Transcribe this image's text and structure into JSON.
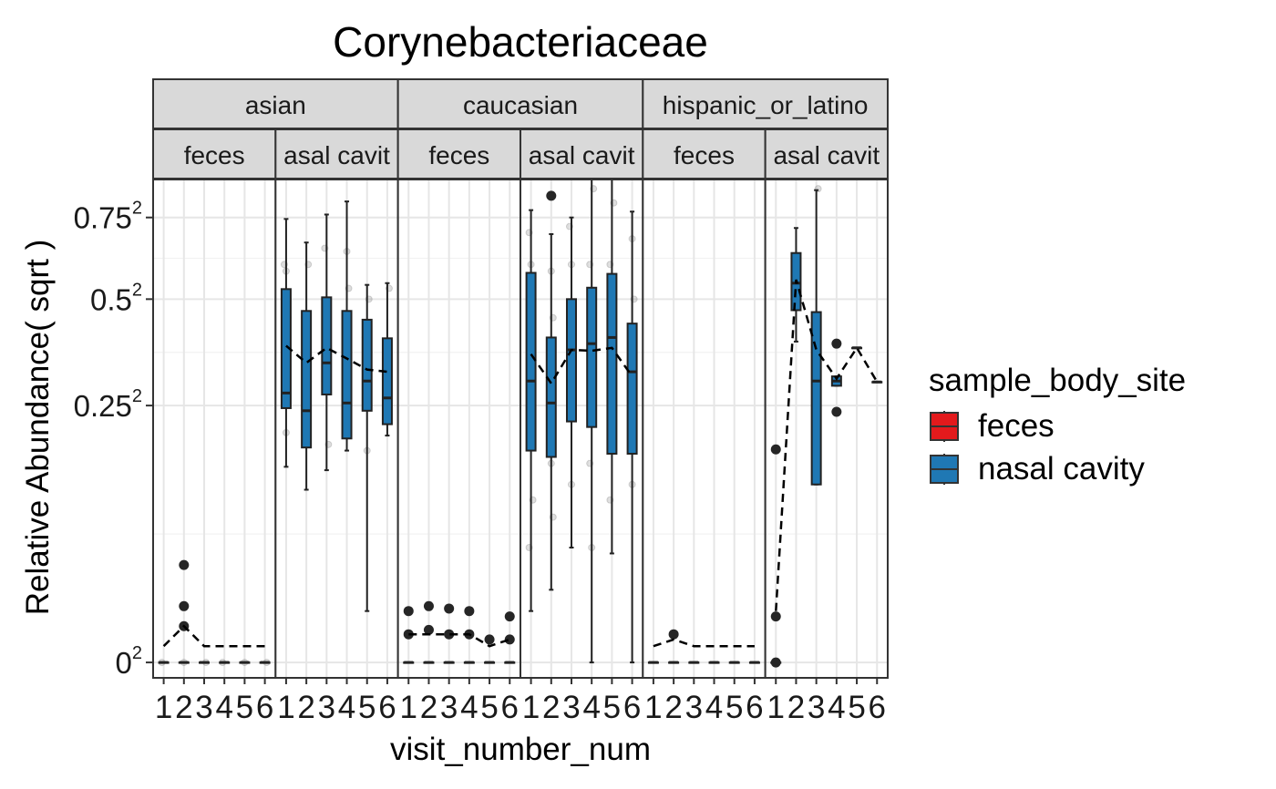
{
  "chart_data": {
    "type": "box",
    "title": "Corynebacteriaceae",
    "xlabel": "visit_number_num",
    "ylabel": "Relative Abundance( sqrt )",
    "y_scale": "sqrt",
    "yticks": [
      0,
      0.25,
      0.5,
      0.75
    ],
    "y_tick_labels": [
      "0",
      "0.25",
      "0.5",
      "0.75"
    ],
    "y_tick_suffix": "2",
    "ylim_sqrt": [
      -0.03,
      0.94
    ],
    "x_tick_labels": [
      "1",
      "2",
      "3",
      "4",
      "5",
      "6"
    ],
    "grid": true,
    "legend_position": "right",
    "legend_title": "sample_body_site",
    "legend": [
      {
        "label": "feces",
        "color": "#e31a1c"
      },
      {
        "label": "nasal cavity",
        "color": "#1f78b4"
      }
    ],
    "facets_top": [
      "asian",
      "caucasian",
      "hispanic_or_latino"
    ],
    "facets_sub_labels": [
      "feces",
      "asal cavit"
    ],
    "panels": [
      {
        "ethnicity": "asian",
        "site": "feces",
        "label": "feces",
        "boxes": [
          {
            "visit": 1,
            "q1": 0,
            "median": 0,
            "q3": 0,
            "wlo": 0,
            "whi": 0
          },
          {
            "visit": 2,
            "q1": 0,
            "median": 0,
            "q3": 0,
            "wlo": 0,
            "whi": 0
          },
          {
            "visit": 3,
            "q1": 0,
            "median": 0,
            "q3": 0,
            "wlo": 0,
            "whi": 0
          },
          {
            "visit": 4,
            "q1": 0,
            "median": 0,
            "q3": 0,
            "wlo": 0,
            "whi": 0
          },
          {
            "visit": 5,
            "q1": 0,
            "median": 0,
            "q3": 0,
            "wlo": 0,
            "whi": 0
          },
          {
            "visit": 6,
            "q1": 0,
            "median": 0,
            "q3": 0,
            "wlo": 0,
            "whi": 0
          }
        ],
        "outliers": [
          [
            2,
            0.036
          ],
          [
            2,
            0.005
          ],
          [
            2,
            0.012
          ]
        ],
        "mean_line": [
          [
            1,
            0.001
          ],
          [
            2,
            0.005
          ],
          [
            3,
            0.001
          ],
          [
            4,
            0.001
          ],
          [
            5,
            0.001
          ],
          [
            6,
            0.001
          ]
        ],
        "jitter": [
          [
            1,
            0.0
          ],
          [
            2,
            0.0
          ],
          [
            3,
            0.0
          ],
          [
            4,
            0.0
          ],
          [
            5,
            0.0
          ],
          [
            6,
            0.0
          ]
        ]
      },
      {
        "ethnicity": "asian",
        "site": "nasal cavity",
        "label": "asal cavit",
        "boxes": [
          {
            "visit": 1,
            "q1": 0.245,
            "median": 0.275,
            "q3": 0.528,
            "wlo": 0.145,
            "whi": 0.745
          },
          {
            "visit": 2,
            "q1": 0.175,
            "median": 0.24,
            "q3": 0.468,
            "wlo": 0.113,
            "whi": 0.668
          },
          {
            "visit": 3,
            "q1": 0.272,
            "median": 0.34,
            "q3": 0.505,
            "wlo": 0.14,
            "whi": 0.76
          },
          {
            "visit": 4,
            "q1": 0.19,
            "median": 0.255,
            "q3": 0.468,
            "wlo": 0.17,
            "whi": 0.805
          },
          {
            "visit": 5,
            "q1": 0.24,
            "median": 0.3,
            "q3": 0.445,
            "wlo": 0.01,
            "whi": 0.54
          },
          {
            "visit": 6,
            "q1": 0.215,
            "median": 0.265,
            "q3": 0.398,
            "wlo": 0.195,
            "whi": 0.545
          }
        ],
        "outliers": [],
        "mean_line": [
          [
            1,
            0.38
          ],
          [
            2,
            0.34
          ],
          [
            3,
            0.375
          ],
          [
            4,
            0.35
          ],
          [
            5,
            0.325
          ],
          [
            6,
            0.32
          ]
        ],
        "jitter": [
          [
            1,
            0.6
          ],
          [
            1,
            0.58
          ],
          [
            1,
            0.45
          ],
          [
            1,
            0.3
          ],
          [
            1,
            0.2
          ],
          [
            2,
            0.6
          ],
          [
            2,
            0.45
          ],
          [
            2,
            0.22
          ],
          [
            2,
            0.3
          ],
          [
            3,
            0.65
          ],
          [
            3,
            0.45
          ],
          [
            3,
            0.18
          ],
          [
            3,
            0.3
          ],
          [
            4,
            0.64
          ],
          [
            4,
            0.53
          ],
          [
            4,
            0.3
          ],
          [
            4,
            0.22
          ],
          [
            5,
            0.5
          ],
          [
            5,
            0.4
          ],
          [
            5,
            0.17
          ],
          [
            6,
            0.53
          ],
          [
            6,
            0.35
          ],
          [
            6,
            0.25
          ]
        ]
      },
      {
        "ethnicity": "caucasian",
        "site": "feces",
        "label": "feces",
        "boxes": [
          {
            "visit": 1,
            "q1": 0,
            "median": 0,
            "q3": 0,
            "wlo": 0,
            "whi": 0
          },
          {
            "visit": 2,
            "q1": 0,
            "median": 0,
            "q3": 0,
            "wlo": 0,
            "whi": 0
          },
          {
            "visit": 3,
            "q1": 0,
            "median": 0,
            "q3": 0,
            "wlo": 0,
            "whi": 0
          },
          {
            "visit": 4,
            "q1": 0,
            "median": 0,
            "q3": 0,
            "wlo": 0,
            "whi": 0
          },
          {
            "visit": 5,
            "q1": 0,
            "median": 0,
            "q3": 0,
            "wlo": 0,
            "whi": 0
          },
          {
            "visit": 6,
            "q1": 0,
            "median": 0,
            "q3": 0,
            "wlo": 0,
            "whi": 0
          }
        ],
        "outliers": [
          [
            1,
            0.01
          ],
          [
            1,
            0.003
          ],
          [
            2,
            0.012
          ],
          [
            2,
            0.004
          ],
          [
            3,
            0.011
          ],
          [
            3,
            0.003
          ],
          [
            4,
            0.01
          ],
          [
            4,
            0.003
          ],
          [
            5,
            0.002
          ],
          [
            6,
            0.008
          ],
          [
            6,
            0.002
          ]
        ],
        "mean_line": [
          [
            1,
            0.003
          ],
          [
            2,
            0.003
          ],
          [
            3,
            0.003
          ],
          [
            4,
            0.003
          ],
          [
            5,
            0.001
          ],
          [
            6,
            0.002
          ]
        ],
        "jitter": []
      },
      {
        "ethnicity": "caucasian",
        "site": "nasal cavity",
        "label": "asal cavit",
        "boxes": [
          {
            "visit": 1,
            "q1": 0.17,
            "median": 0.3,
            "q3": 0.575,
            "wlo": 0.01,
            "whi": 0.775
          },
          {
            "visit": 2,
            "q1": 0.16,
            "median": 0.255,
            "q3": 0.4,
            "wlo": 0.02,
            "whi": 0.695
          },
          {
            "visit": 3,
            "q1": 0.22,
            "median": 0.37,
            "q3": 0.5,
            "wlo": 0.05,
            "whi": 0.75
          },
          {
            "visit": 4,
            "q1": 0.21,
            "median": 0.385,
            "q3": 0.532,
            "wlo": 0.0,
            "whi": 0.9
          },
          {
            "visit": 5,
            "q1": 0.165,
            "median": 0.4,
            "q3": 0.572,
            "wlo": 0.045,
            "whi": 0.89
          },
          {
            "visit": 6,
            "q1": 0.165,
            "median": 0.32,
            "q3": 0.435,
            "wlo": 0.0,
            "whi": 0.77
          }
        ],
        "outliers": [
          [
            2,
            0.825
          ]
        ],
        "mean_line": [
          [
            1,
            0.36
          ],
          [
            2,
            0.295
          ],
          [
            3,
            0.37
          ],
          [
            4,
            0.368
          ],
          [
            5,
            0.375
          ],
          [
            6,
            0.31
          ]
        ],
        "jitter": [
          [
            1,
            0.7
          ],
          [
            1,
            0.6
          ],
          [
            1,
            0.45
          ],
          [
            1,
            0.35
          ],
          [
            1,
            0.25
          ],
          [
            1,
            0.1
          ],
          [
            1,
            0.05
          ],
          [
            2,
            0.58
          ],
          [
            2,
            0.45
          ],
          [
            2,
            0.3
          ],
          [
            2,
            0.15
          ],
          [
            2,
            0.08
          ],
          [
            3,
            0.72
          ],
          [
            3,
            0.6
          ],
          [
            3,
            0.4
          ],
          [
            3,
            0.28
          ],
          [
            3,
            0.12
          ],
          [
            4,
            0.85
          ],
          [
            4,
            0.6
          ],
          [
            4,
            0.5
          ],
          [
            4,
            0.3
          ],
          [
            4,
            0.15
          ],
          [
            4,
            0.05
          ],
          [
            5,
            0.8
          ],
          [
            5,
            0.6
          ],
          [
            5,
            0.45
          ],
          [
            5,
            0.25
          ],
          [
            5,
            0.1
          ],
          [
            6,
            0.68
          ],
          [
            6,
            0.5
          ],
          [
            6,
            0.3
          ],
          [
            6,
            0.12
          ]
        ]
      },
      {
        "ethnicity": "hispanic_or_latino",
        "site": "feces",
        "label": "feces",
        "boxes": [
          {
            "visit": 1,
            "q1": 0,
            "median": 0,
            "q3": 0,
            "wlo": 0,
            "whi": 0
          },
          {
            "visit": 2,
            "q1": 0,
            "median": 0,
            "q3": 0,
            "wlo": 0,
            "whi": 0
          },
          {
            "visit": 3,
            "q1": 0,
            "median": 0,
            "q3": 0,
            "wlo": 0,
            "whi": 0
          },
          {
            "visit": 4,
            "q1": 0,
            "median": 0,
            "q3": 0,
            "wlo": 0,
            "whi": 0
          },
          {
            "visit": 5,
            "q1": 0,
            "median": 0,
            "q3": 0,
            "wlo": 0,
            "whi": 0
          },
          {
            "visit": 6,
            "q1": 0,
            "median": 0,
            "q3": 0,
            "wlo": 0,
            "whi": 0
          }
        ],
        "outliers": [
          [
            2,
            0.003
          ]
        ],
        "mean_line": [
          [
            1,
            0.001
          ],
          [
            2,
            0.002
          ],
          [
            3,
            0.001
          ],
          [
            4,
            0.001
          ],
          [
            5,
            0.001
          ],
          [
            6,
            0.001
          ]
        ],
        "jitter": []
      },
      {
        "ethnicity": "hispanic_or_latino",
        "site": "nasal cavity",
        "label": "asal cavit",
        "boxes": [
          {
            "visit": 1,
            "q1": 0.0,
            "median": 0.0,
            "q3": 0.0,
            "wlo": 0.0,
            "whi": 0.0
          },
          {
            "visit": 2,
            "q1": 0.47,
            "median": 0.545,
            "q3": 0.635,
            "wlo": 0.39,
            "whi": 0.715
          },
          {
            "visit": 3,
            "q1": 0.12,
            "median": 0.3,
            "q3": 0.465,
            "wlo": 0.12,
            "whi": 0.845
          },
          {
            "visit": 4,
            "q1": 0.29,
            "median": 0.3,
            "q3": 0.31,
            "wlo": 0.29,
            "whi": 0.31
          },
          {
            "visit": 5,
            "q1": 0.375,
            "median": 0.375,
            "q3": 0.375,
            "wlo": 0.375,
            "whi": 0.375
          },
          {
            "visit": 6,
            "q1": 0.298,
            "median": 0.298,
            "q3": 0.298,
            "wlo": 0.298,
            "whi": 0.298
          }
        ],
        "outliers": [
          [
            1,
            0.172
          ],
          [
            1,
            0.0
          ],
          [
            1,
            0.008
          ],
          [
            4,
            0.385
          ],
          [
            4,
            0.238
          ]
        ],
        "mean_line": [
          [
            1,
            0.01
          ],
          [
            2,
            0.555
          ],
          [
            3,
            0.37
          ],
          [
            4,
            0.305
          ],
          [
            5,
            0.375
          ],
          [
            6,
            0.298
          ]
        ],
        "jitter": [
          [
            2,
            0.5
          ],
          [
            3,
            0.3
          ],
          [
            3,
            0.85
          ]
        ]
      }
    ]
  }
}
